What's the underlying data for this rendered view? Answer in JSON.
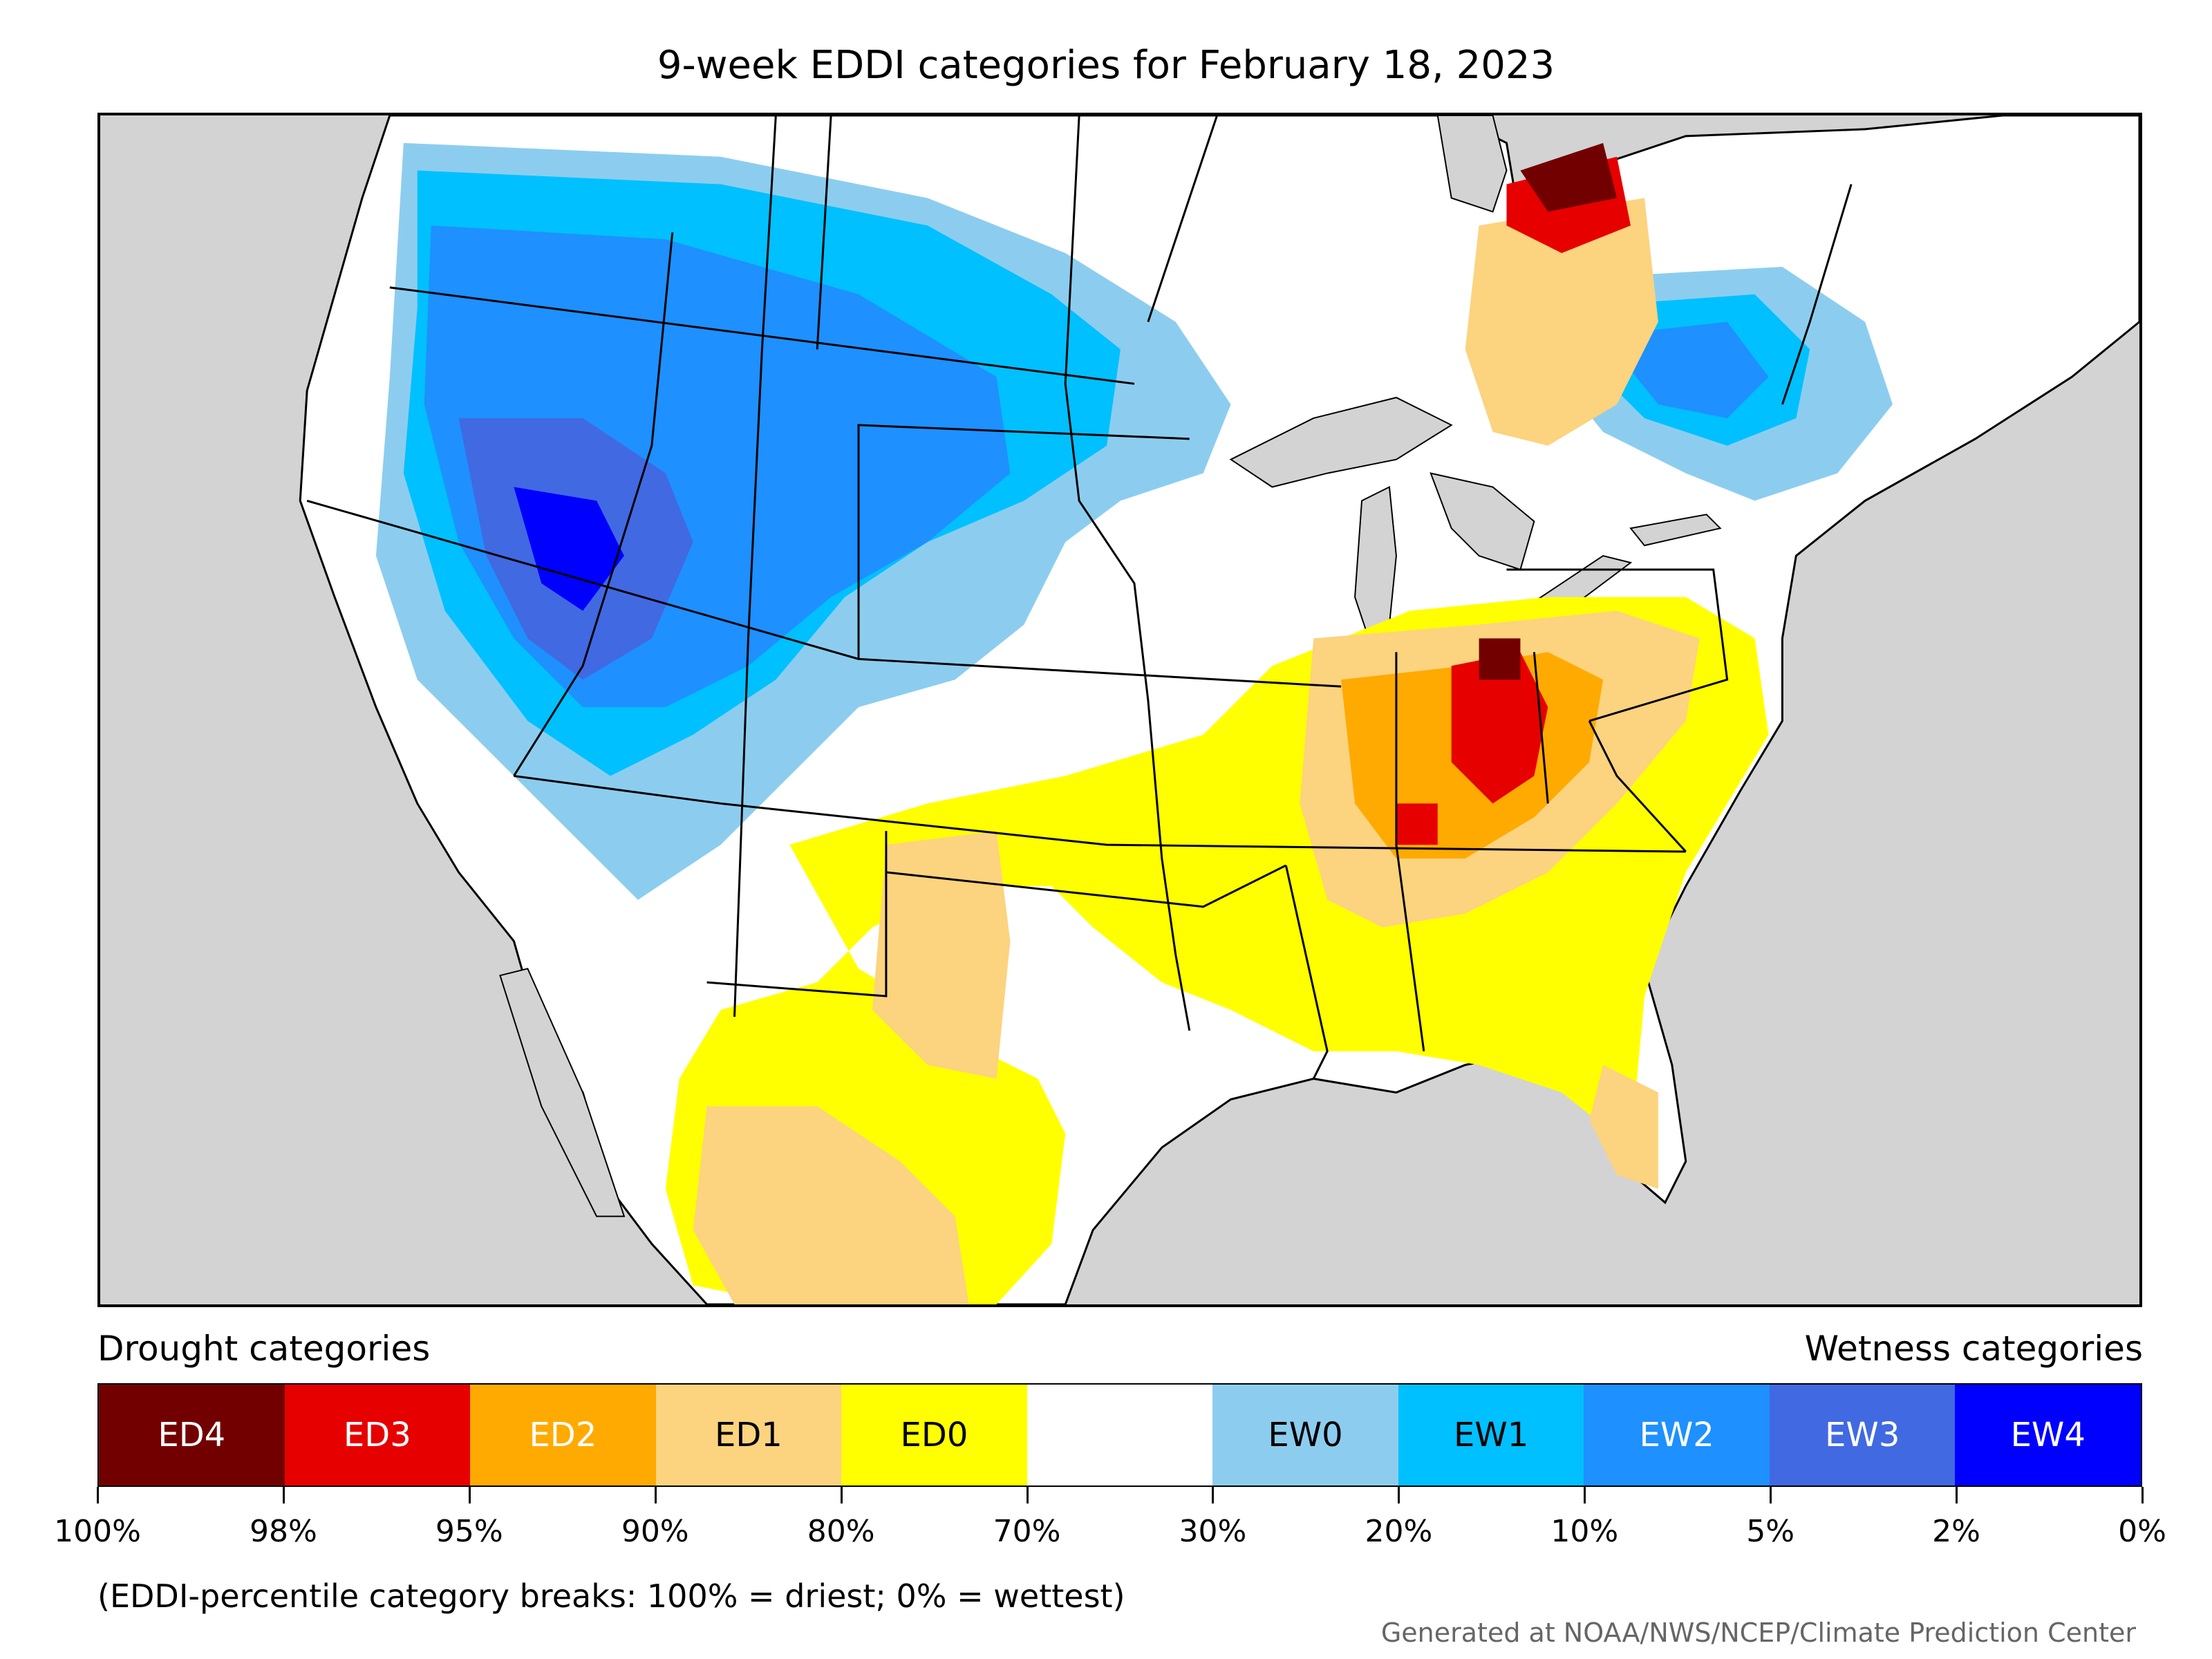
{
  "title": "9-week EDDI categories for February 18, 2023",
  "legend": {
    "drought_label": "Drought categories",
    "wetness_label": "Wetness categories",
    "categories": [
      {
        "label": "ED4",
        "color": "#730000",
        "text_color": "#ffffff"
      },
      {
        "label": "ED3",
        "color": "#e60000",
        "text_color": "#ffffff"
      },
      {
        "label": "ED2",
        "color": "#ffaa00",
        "text_color": "#ffffff"
      },
      {
        "label": "ED1",
        "color": "#fcd37f",
        "text_color": "#000000"
      },
      {
        "label": "ED0",
        "color": "#ffff00",
        "text_color": "#000000"
      },
      {
        "label": "",
        "color": "#ffffff",
        "text_color": "#000000"
      },
      {
        "label": "EW0",
        "color": "#8ccdef",
        "text_color": "#000000"
      },
      {
        "label": "EW1",
        "color": "#00c0ff",
        "text_color": "#000000"
      },
      {
        "label": "EW2",
        "color": "#1e90ff",
        "text_color": "#ffffff"
      },
      {
        "label": "EW3",
        "color": "#4169e1",
        "text_color": "#ffffff"
      },
      {
        "label": "EW4",
        "color": "#0000ff",
        "text_color": "#ffffff"
      }
    ],
    "ticks": [
      "100%",
      "98%",
      "95%",
      "90%",
      "80%",
      "70%",
      "30%",
      "20%",
      "10%",
      "5%",
      "2%",
      "0%"
    ]
  },
  "footnote": "(EDDI-percentile category breaks: 100% = driest; 0% = wettest)",
  "credit": "Generated at NOAA/NWS/NCEP/Climate Prediction Center",
  "map": {
    "background_color": "#d3d3d3",
    "land_color": "#ffffff",
    "water_color": "#d3d3d3"
  }
}
